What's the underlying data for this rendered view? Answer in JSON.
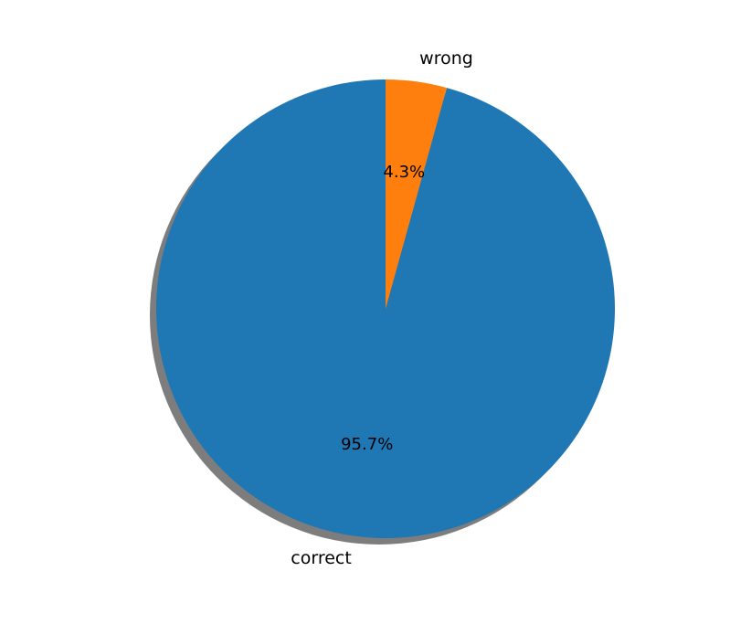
{
  "chart_data": {
    "type": "pie",
    "title": "",
    "slices": [
      {
        "label": "correct",
        "value": 95.7,
        "pct_label": "95.7%",
        "color": "#1f77b4"
      },
      {
        "label": "wrong",
        "value": 4.3,
        "pct_label": "4.3%",
        "color": "#ff7f0e"
      }
    ],
    "shadow": true,
    "shadow_color": "#666666"
  }
}
